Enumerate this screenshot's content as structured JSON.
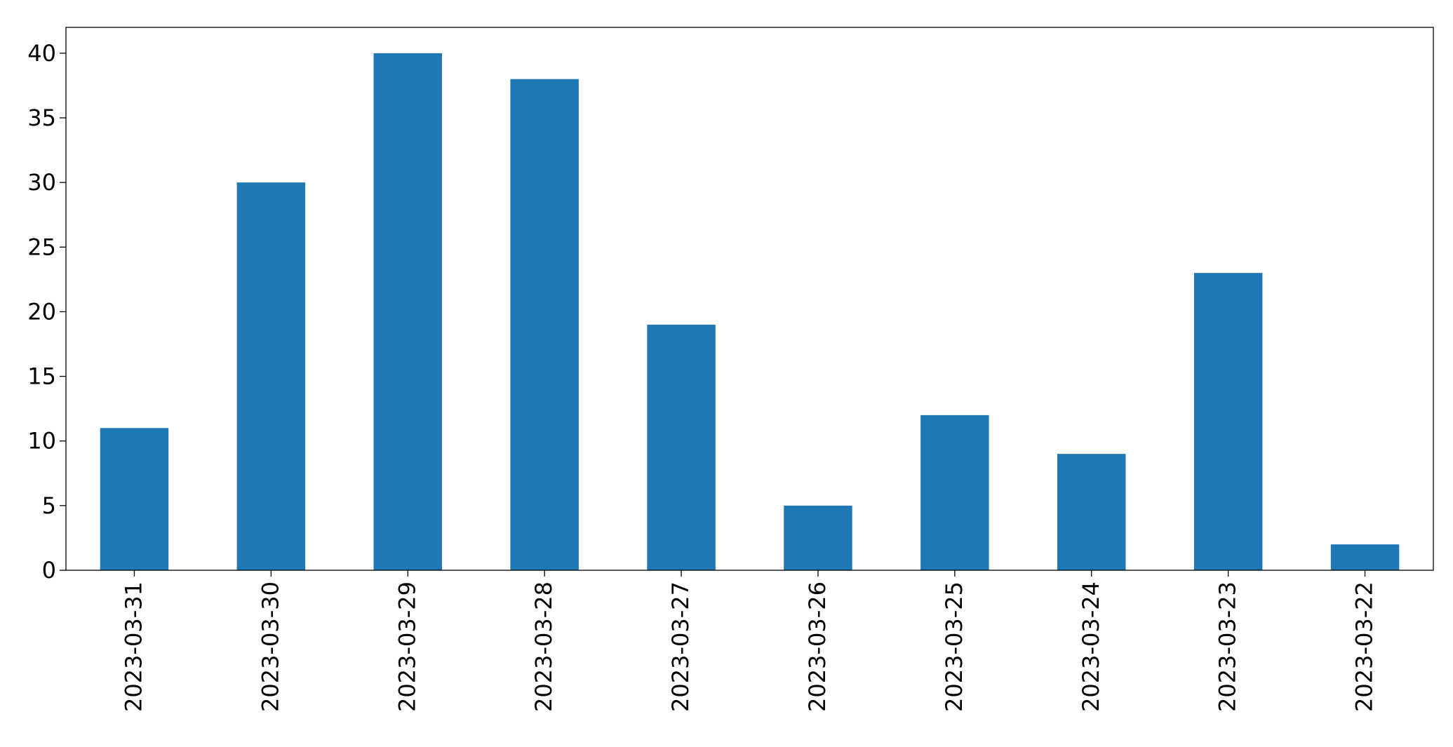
{
  "chart_data": {
    "type": "bar",
    "title": "",
    "xlabel": "",
    "ylabel": "",
    "categories": [
      "2023-03-31",
      "2023-03-30",
      "2023-03-29",
      "2023-03-28",
      "2023-03-27",
      "2023-03-26",
      "2023-03-25",
      "2023-03-24",
      "2023-03-23",
      "2023-03-22"
    ],
    "values": [
      11,
      30,
      40,
      38,
      19,
      5,
      12,
      9,
      23,
      2
    ],
    "ylim": [
      0,
      42
    ],
    "yticks": [
      0,
      5,
      10,
      15,
      20,
      25,
      30,
      35,
      40
    ],
    "grid": false,
    "legend": "none",
    "colors": {
      "bar": "#1f77b4",
      "axis": "#000000",
      "background": "#ffffff"
    }
  }
}
